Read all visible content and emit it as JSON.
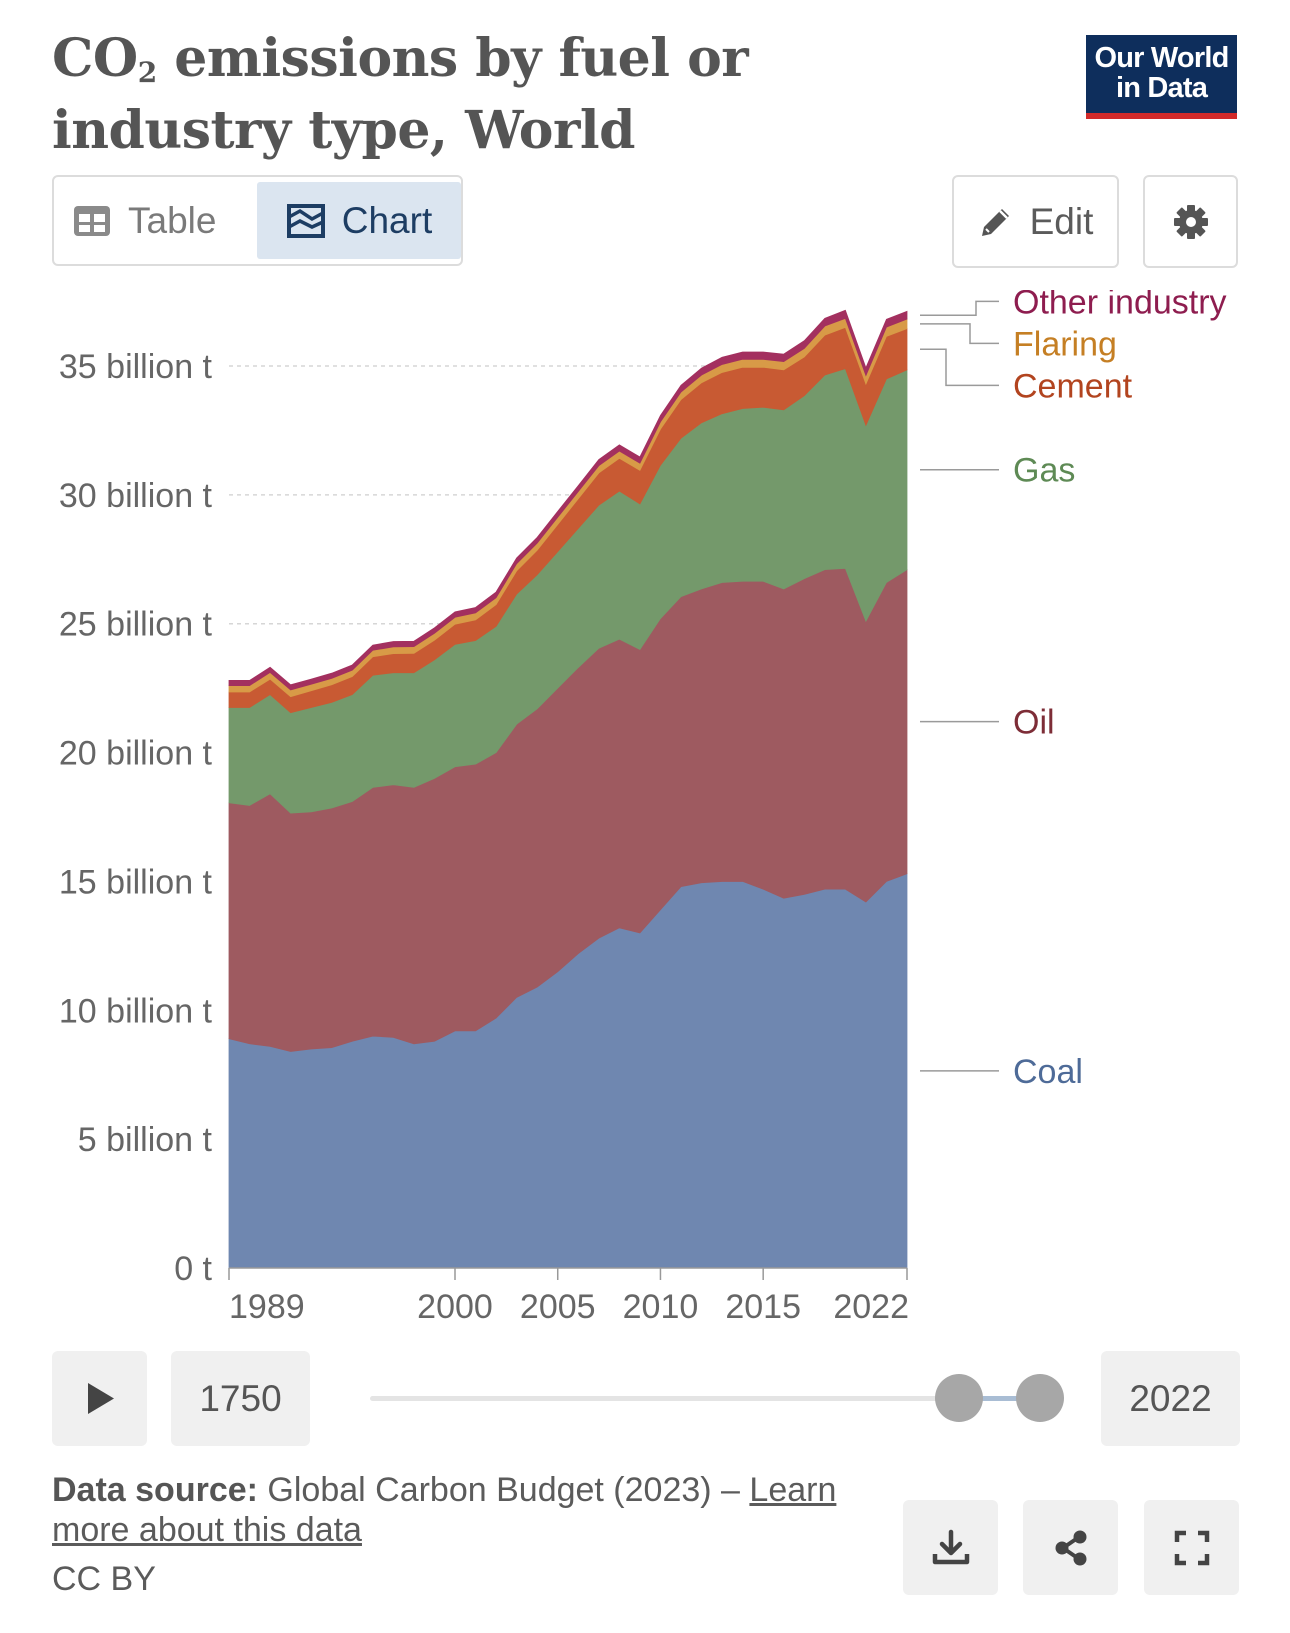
{
  "header": {
    "title_pre": "CO",
    "title_sub": "2",
    "title_post": " emissions by fuel or industry type, World",
    "logo_line1": "Our World",
    "logo_line2": "in Data"
  },
  "tabs": {
    "table_label": "Table",
    "chart_label": "Chart",
    "active": "Chart"
  },
  "toolbar": {
    "edit_label": "Edit"
  },
  "chart_data": {
    "type": "area",
    "stacked": true,
    "y_unit": "billion t",
    "yticks": [
      "0 t",
      "5 billion t",
      "10 billion t",
      "15 billion t",
      "20 billion t",
      "25 billion t",
      "30 billion t",
      "35 billion t"
    ],
    "ytick_values": [
      0,
      5,
      10,
      15,
      20,
      25,
      30,
      35
    ],
    "xticks": [
      "1989",
      "2000",
      "2005",
      "2010",
      "2015",
      "2022"
    ],
    "xtick_values": [
      1989,
      2000,
      2005,
      2010,
      2015,
      2022
    ],
    "xlim": [
      1989,
      2022
    ],
    "ylim": [
      0,
      37.5
    ],
    "grid": "horizontal dashed",
    "legend_placement": "right, inline labels",
    "x": [
      1989,
      1990,
      1991,
      1992,
      1993,
      1994,
      1995,
      1996,
      1997,
      1998,
      1999,
      2000,
      2001,
      2002,
      2003,
      2004,
      2005,
      2006,
      2007,
      2008,
      2009,
      2010,
      2011,
      2012,
      2013,
      2014,
      2015,
      2016,
      2017,
      2018,
      2019,
      2020,
      2021,
      2022
    ],
    "series": [
      {
        "name": "Coal",
        "color": "#6f87b0",
        "values": [
          8.9,
          8.7,
          8.6,
          8.4,
          8.5,
          8.55,
          8.8,
          9.0,
          8.95,
          8.7,
          8.8,
          9.2,
          9.2,
          9.7,
          10.5,
          10.9,
          11.5,
          12.2,
          12.8,
          13.2,
          13.0,
          13.9,
          14.8,
          14.95,
          15.0,
          15.0,
          14.7,
          14.35,
          14.5,
          14.7,
          14.7,
          14.2,
          15.0,
          15.3
        ]
      },
      {
        "name": "Oil",
        "color": "#9e5a60",
        "values": [
          9.15,
          9.25,
          9.8,
          9.25,
          9.2,
          9.3,
          9.3,
          9.65,
          9.8,
          9.95,
          10.2,
          10.25,
          10.35,
          10.3,
          10.6,
          10.8,
          11.0,
          11.1,
          11.25,
          11.2,
          11.0,
          11.3,
          11.25,
          11.4,
          11.6,
          11.65,
          11.95,
          12.0,
          12.25,
          12.4,
          12.45,
          10.9,
          11.6,
          11.8
        ]
      },
      {
        "name": "Gas",
        "color": "#74996b",
        "values": [
          3.7,
          3.8,
          3.85,
          3.9,
          4.05,
          4.1,
          4.15,
          4.35,
          4.35,
          4.45,
          4.6,
          4.75,
          4.8,
          4.9,
          5.05,
          5.2,
          5.3,
          5.4,
          5.55,
          5.75,
          5.65,
          5.95,
          6.15,
          6.45,
          6.55,
          6.7,
          6.75,
          6.95,
          7.1,
          7.55,
          7.75,
          7.6,
          7.9,
          7.75
        ]
      },
      {
        "name": "Cement",
        "color": "#c85a33",
        "values": [
          0.6,
          0.6,
          0.6,
          0.62,
          0.65,
          0.68,
          0.7,
          0.72,
          0.74,
          0.75,
          0.76,
          0.78,
          0.8,
          0.84,
          0.9,
          0.95,
          1.05,
          1.15,
          1.25,
          1.27,
          1.3,
          1.4,
          1.5,
          1.55,
          1.6,
          1.6,
          1.55,
          1.55,
          1.5,
          1.55,
          1.6,
          1.6,
          1.65,
          1.6
        ]
      },
      {
        "name": "Flaring",
        "color": "#d89a47",
        "values": [
          0.25,
          0.25,
          0.26,
          0.26,
          0.25,
          0.25,
          0.25,
          0.25,
          0.26,
          0.26,
          0.27,
          0.27,
          0.27,
          0.27,
          0.28,
          0.28,
          0.28,
          0.28,
          0.28,
          0.28,
          0.28,
          0.28,
          0.29,
          0.3,
          0.31,
          0.31,
          0.31,
          0.32,
          0.33,
          0.35,
          0.35,
          0.33,
          0.36,
          0.37
        ]
      },
      {
        "name": "Other industry",
        "color": "#a3305f",
        "values": [
          0.2,
          0.2,
          0.2,
          0.2,
          0.2,
          0.2,
          0.2,
          0.2,
          0.21,
          0.21,
          0.21,
          0.21,
          0.21,
          0.22,
          0.22,
          0.22,
          0.23,
          0.23,
          0.24,
          0.24,
          0.24,
          0.25,
          0.26,
          0.27,
          0.28,
          0.28,
          0.28,
          0.29,
          0.3,
          0.3,
          0.31,
          0.3,
          0.3,
          0.3
        ]
      }
    ],
    "legend": [
      {
        "label": "Other industry",
        "color": "#8e1d4f"
      },
      {
        "label": "Flaring",
        "color": "#c57f24"
      },
      {
        "label": "Cement",
        "color": "#b2441f"
      },
      {
        "label": "Gas",
        "color": "#5e8a55"
      },
      {
        "label": "Oil",
        "color": "#7d2d37"
      },
      {
        "label": "Coal",
        "color": "#4e6b98"
      }
    ]
  },
  "timeline": {
    "start_year": "1750",
    "end_year": "2022"
  },
  "footer": {
    "source_label": "Data source:",
    "source_text": " Global Carbon Budget (2023) – ",
    "learn_link": "Learn more about this data",
    "license": "CC BY"
  }
}
